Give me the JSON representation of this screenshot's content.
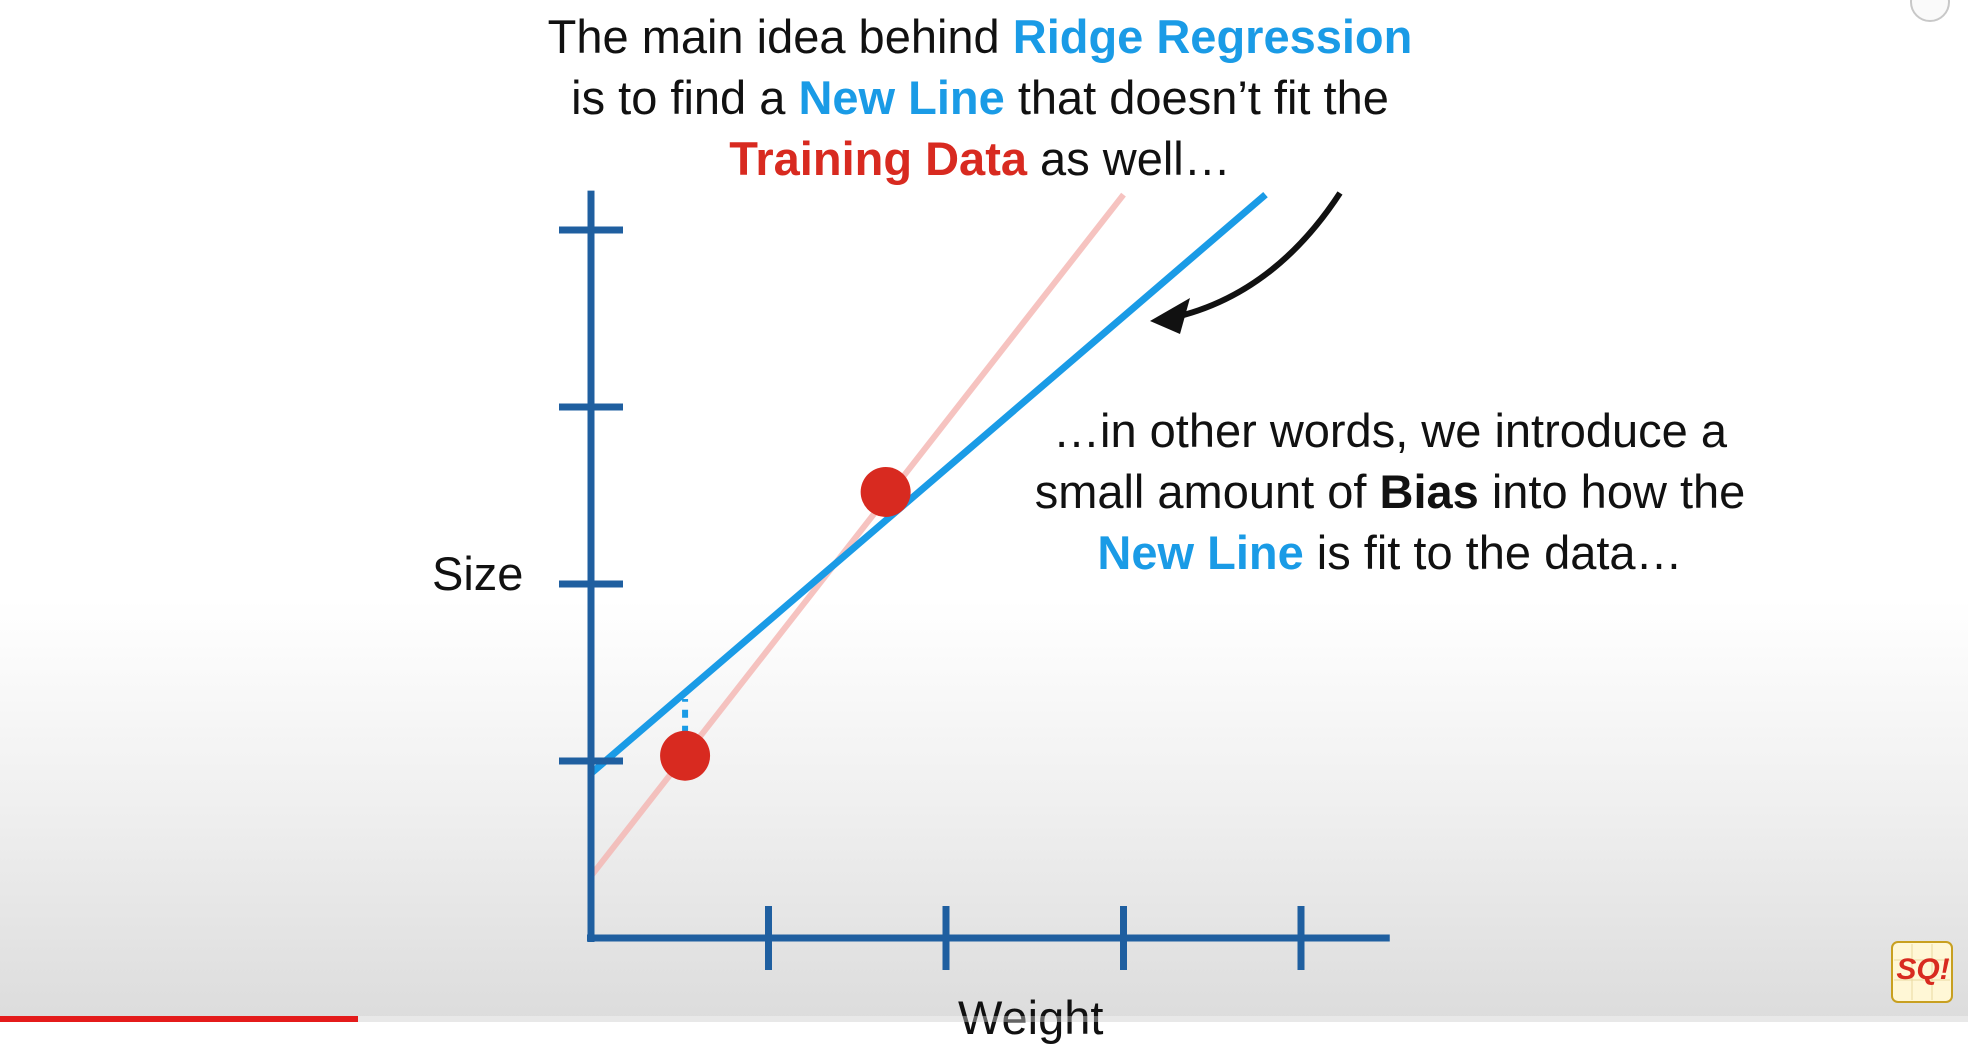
{
  "caption_top": {
    "line1_pre": "The main idea behind ",
    "line1_em": "Ridge Regression",
    "line2_pre": "is to find a ",
    "line2_em": "New Line",
    "line2_post": " that doesn’t fit the",
    "line3_em": "Training Data",
    "line3_post": " as well…"
  },
  "caption_right": {
    "line1": "…in other words, we introduce a",
    "line2_pre": "small amount of ",
    "line2_em": "Bias",
    "line2_post": " into how the",
    "line3_em": "New Line",
    "line3_post": " is fit to the data…"
  },
  "colors": {
    "axis": "#1f5fa0",
    "new_line": "#1a9be6",
    "old_line": "#f4b4b0",
    "points": "#d82a20",
    "arrow": "#111111"
  },
  "chart_data": {
    "type": "scatter",
    "xlabel": "Weight",
    "ylabel": "Size",
    "xlim": [
      0,
      4.5
    ],
    "ylim": [
      0,
      4.2
    ],
    "x_ticks": [
      1,
      2,
      3,
      4
    ],
    "y_ticks": [
      1,
      2,
      3,
      4
    ],
    "points": [
      {
        "x": 0.53,
        "y": 1.03
      },
      {
        "x": 1.66,
        "y": 2.52
      }
    ],
    "lines": [
      {
        "role": "training-fit",
        "color": "#f4b4b0",
        "x0": 0,
        "y0": 0.35,
        "x1": 3.0,
        "y1": 4.2
      },
      {
        "role": "new-line",
        "color": "#1a9be6",
        "x0": 0,
        "y0": 0.93,
        "x1": 3.8,
        "y1": 4.2
      }
    ],
    "residual": {
      "x": 0.53,
      "y_from": 1.03,
      "y_to": 1.35
    }
  },
  "video": {
    "progress": 0.182
  },
  "logo": {
    "text": "SQ!"
  }
}
